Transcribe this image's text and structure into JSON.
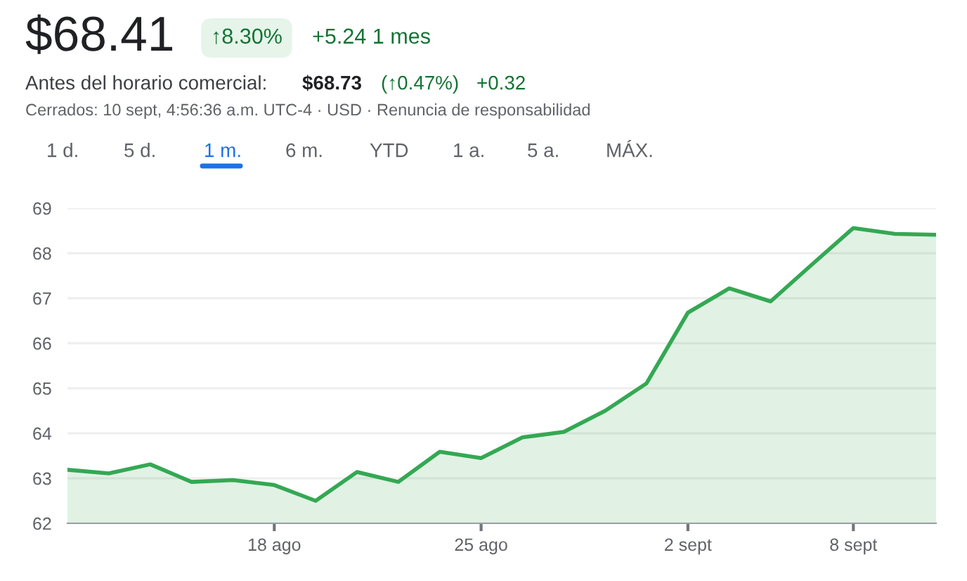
{
  "chart_data": {
    "type": "area",
    "title": "$68.41",
    "categories": [
      null,
      null,
      null,
      null,
      null,
      "18 ago",
      null,
      null,
      null,
      null,
      "25 ago",
      null,
      null,
      null,
      null,
      "2 sept",
      null,
      null,
      null,
      "8 sept",
      null,
      null
    ],
    "series": [
      {
        "color": "#34a853",
        "values": [
          63.19,
          63.11,
          63.31,
          62.92,
          62.96,
          62.85,
          62.5,
          63.14,
          62.92,
          63.59,
          63.45,
          63.91,
          64.03,
          64.5,
          65.11,
          66.68,
          67.22,
          66.93,
          67.75,
          68.56,
          68.43,
          68.41
        ]
      }
    ],
    "ylim": [
      62,
      69
    ],
    "yticks": [
      62,
      63,
      64,
      65,
      66,
      67,
      68,
      69
    ],
    "grid": "y",
    "legend": false,
    "annotations": [
      "↑8.30%",
      "+5.24 1 mes",
      "Antes del horario comercial:",
      "$68.73",
      "(↑0.47%)",
      "+0.32",
      "Cerrados: 10 sept, 4:56:36 a.m. UTC-4 · USD · Renuncia de responsabilidad",
      "1 d.",
      "5 d.",
      "1 m.",
      "6 m.",
      "YTD",
      "1 a.",
      "5 a.",
      "MÁX."
    ]
  }
}
